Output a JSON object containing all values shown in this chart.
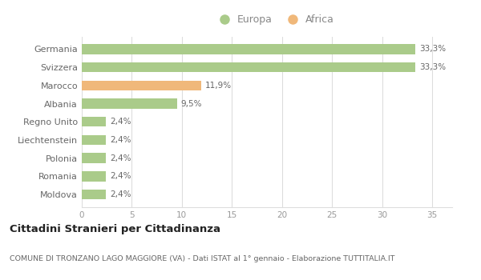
{
  "categories": [
    "Germania",
    "Svizzera",
    "Marocco",
    "Albania",
    "Regno Unito",
    "Liechtenstein",
    "Polonia",
    "Romania",
    "Moldova"
  ],
  "values": [
    33.3,
    33.3,
    11.9,
    9.5,
    2.4,
    2.4,
    2.4,
    2.4,
    2.4
  ],
  "colors": [
    "#aacb8a",
    "#aacb8a",
    "#f0b87a",
    "#aacb8a",
    "#aacb8a",
    "#aacb8a",
    "#aacb8a",
    "#aacb8a",
    "#aacb8a"
  ],
  "europa_color": "#aacb8a",
  "africa_color": "#f0b87a",
  "xlim": [
    0,
    37
  ],
  "xticks": [
    0,
    5,
    10,
    15,
    20,
    25,
    30,
    35
  ],
  "title": "Cittadini Stranieri per Cittadinanza",
  "subtitle": "COMUNE DI TRONZANO LAGO MAGGIORE (VA) - Dati ISTAT al 1° gennaio - Elaborazione TUTTITALIA.IT",
  "labels": [
    "33,3%",
    "33,3%",
    "11,9%",
    "9,5%",
    "2,4%",
    "2,4%",
    "2,4%",
    "2,4%",
    "2,4%"
  ],
  "bg_color": "#ffffff",
  "grid_color": "#dddddd",
  "bar_height": 0.55
}
